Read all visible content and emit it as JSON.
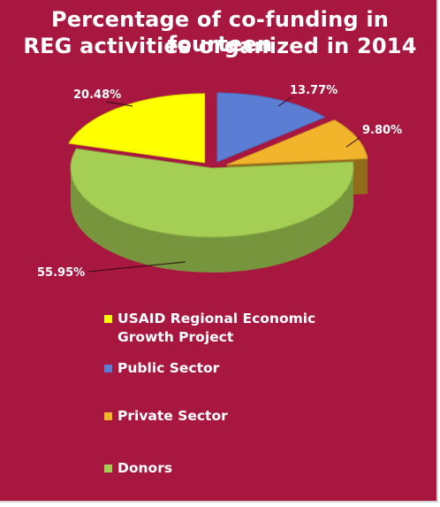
{
  "title_line1": "Percentage of co-funding in fourteen",
  "title_line2": "REG activities organized in 2014",
  "colors": {
    "background": "#a8173f",
    "usaid": "#ffff00",
    "public": "#5b7dd4",
    "private": "#f2b42b",
    "donors": "#a4cf54"
  },
  "legend": [
    {
      "line1": "USAID Regional Economic",
      "line2": "Growth Project"
    },
    {
      "line1": "Public Sector"
    },
    {
      "line1": "Private Sector"
    },
    {
      "line1": "Donors"
    }
  ],
  "chart_data": {
    "type": "pie",
    "style": "3d-exploded",
    "legend_position": "bottom",
    "categories": [
      "USAID Regional Economic Growth Project",
      "Public Sector",
      "Private Sector",
      "Donors"
    ],
    "values": [
      20.48,
      13.77,
      9.8,
      55.95
    ],
    "labels": [
      "20.48%",
      "13.77%",
      "9.80%",
      "55.95%"
    ]
  }
}
